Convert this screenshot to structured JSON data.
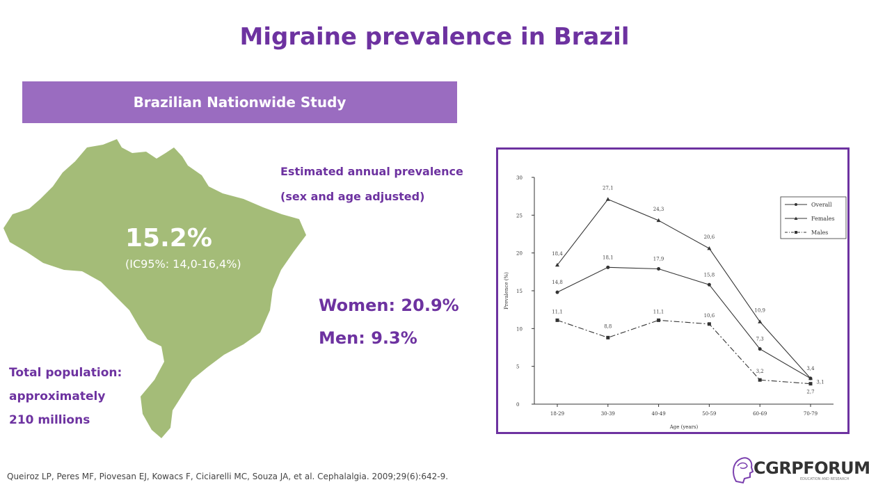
{
  "slide": {
    "title": "Migraine prevalence in Brazil",
    "banner": "Brazilian Nationwide Study",
    "map_headline": "15.2%",
    "map_ci": "(IC95%: 14,0-16,4%)",
    "estimate_line1": "Estimated annual prevalence",
    "estimate_line2": "(sex and age adjusted)",
    "women": "Women: 20.9%",
    "men": "Men: 9.3%",
    "population_line1": "Total population:",
    "population_line2": "approximately",
    "population_line3": "210 millions",
    "reference": "Queiroz LP, Peres MF, Piovesan EJ, Kowacs F, Ciciarelli MC, Souza JA, et al. Cephalalgia. 2009;29(6):642-9.",
    "logo_text": "CGRPFORUM",
    "logo_subtext": "EDUCATION AND RESEARCH"
  },
  "colors": {
    "accent": "#6d32a0",
    "banner": "#9a6cc0",
    "map": "#a4bc78"
  },
  "chart_data": {
    "type": "line",
    "categories": [
      "18-29",
      "30-39",
      "40-49",
      "50-59",
      "60-69",
      "70-79"
    ],
    "series": [
      {
        "name": "Overall",
        "values": [
          14.8,
          18.1,
          17.9,
          15.8,
          7.3,
          3.4
        ],
        "labels": [
          "14,8",
          "18,1",
          "17,9",
          "15,8",
          "7,3",
          "3,4"
        ]
      },
      {
        "name": "Females",
        "values": [
          18.4,
          27.1,
          24.3,
          20.6,
          10.9,
          3.4
        ],
        "labels": [
          "18,4",
          "27,1",
          "24,3",
          "20,6",
          "10,9",
          ""
        ]
      },
      {
        "name": "Males",
        "values": [
          11.1,
          8.8,
          11.1,
          10.6,
          3.2,
          2.7
        ],
        "labels": [
          "11,1",
          "8,8",
          "11,1",
          "10,6",
          "3,2",
          "2,7"
        ]
      }
    ],
    "extra_label": "3,1",
    "xlabel": "Age (years)",
    "ylabel": "Prevalence (%)",
    "ylim": [
      0,
      30
    ],
    "yticks": [
      0,
      5,
      10,
      15,
      20,
      25,
      30
    ],
    "legend": "top-right"
  }
}
